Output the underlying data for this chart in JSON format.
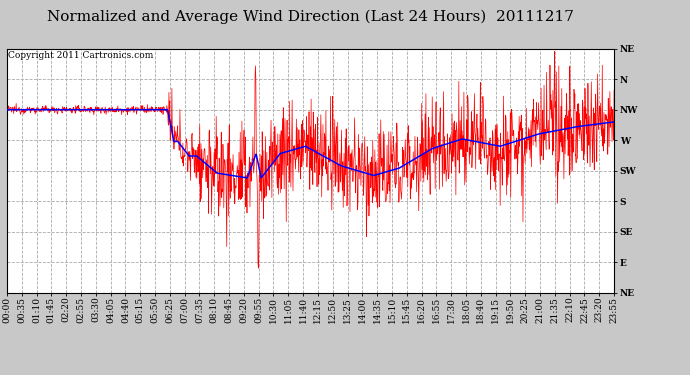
{
  "title": "Normalized and Average Wind Direction (Last 24 Hours)  20111217",
  "copyright": "Copyright 2011 Cartronics.com",
  "background_color": "#c8c8c8",
  "plot_bg_color": "#ffffff",
  "grid_color": "#aaaaaa",
  "ytick_labels": [
    "NE",
    "N",
    "NW",
    "W",
    "SW",
    "S",
    "SE",
    "E",
    "NE"
  ],
  "ytick_values": [
    1.0,
    0.875,
    0.75,
    0.625,
    0.5,
    0.375,
    0.25,
    0.125,
    0.0
  ],
  "xtick_labels": [
    "00:00",
    "00:35",
    "01:10",
    "01:45",
    "02:20",
    "02:55",
    "03:30",
    "04:05",
    "04:40",
    "05:15",
    "05:50",
    "06:25",
    "07:00",
    "07:35",
    "08:10",
    "08:45",
    "09:20",
    "09:55",
    "10:30",
    "11:05",
    "11:40",
    "12:15",
    "12:50",
    "13:25",
    "14:00",
    "14:35",
    "15:10",
    "15:45",
    "16:20",
    "16:55",
    "17:30",
    "18:05",
    "18:40",
    "19:15",
    "19:50",
    "20:25",
    "21:00",
    "21:35",
    "22:10",
    "22:45",
    "23:20",
    "23:55"
  ],
  "red_line_color": "#ff0000",
  "blue_line_color": "#0000ff",
  "title_fontsize": 11,
  "copyright_fontsize": 6.5,
  "tick_fontsize": 6.5
}
